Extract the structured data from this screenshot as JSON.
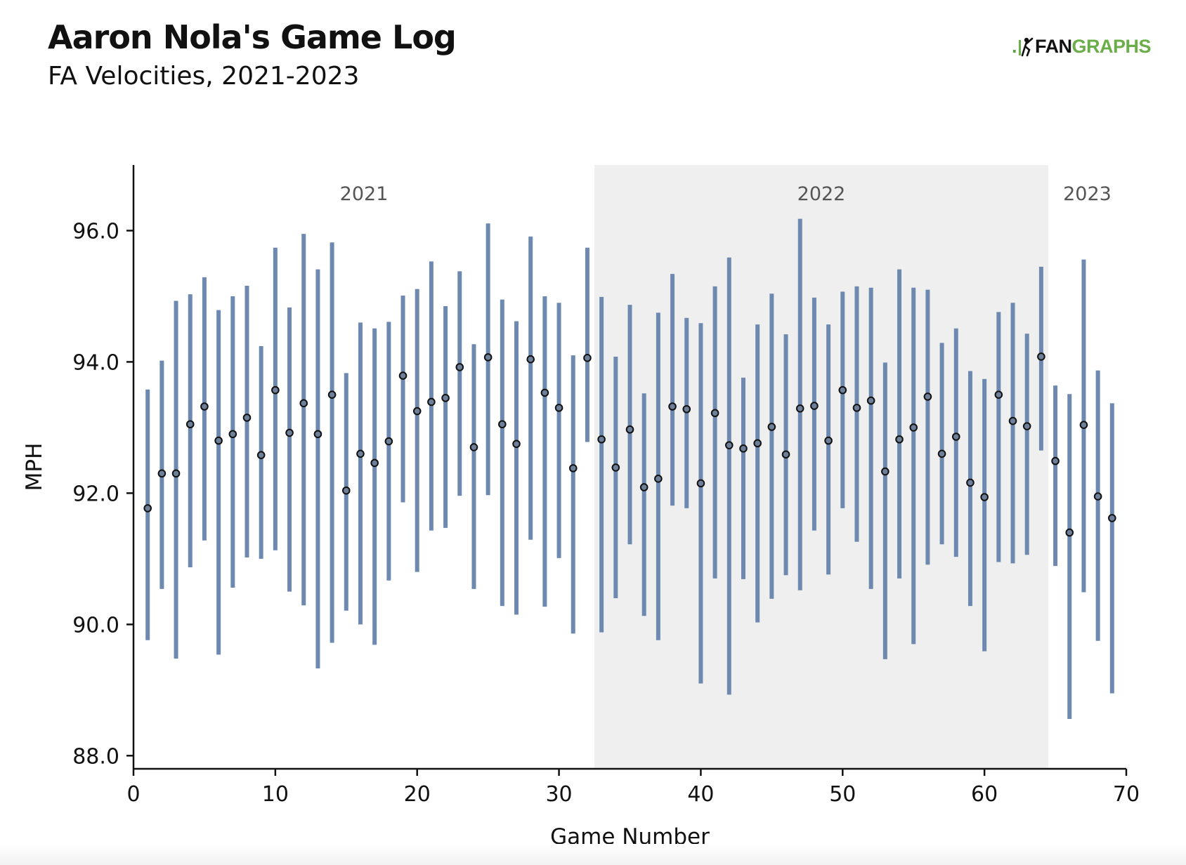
{
  "header": {
    "title": "Aaron Nola's Game Log",
    "subtitle": "FA Velocities, 2021-2023"
  },
  "logo": {
    "dot": ".",
    "part1": "FAN",
    "part2": "GRAPHS"
  },
  "colors": {
    "bar": "#6e89b0",
    "point_fill": "#6e7f99",
    "point_stroke": "#111111",
    "season_band": "#efefef",
    "season_label": "#555555"
  },
  "chart_data": {
    "type": "scatter",
    "title": "Aaron Nola's Game Log",
    "subtitle": "FA Velocities, 2021-2023",
    "xlabel": "Game Number",
    "ylabel": "MPH",
    "xlim": [
      0,
      70
    ],
    "ylim": [
      87.8,
      97.0
    ],
    "xticks": [
      0,
      10,
      20,
      30,
      40,
      50,
      60,
      70
    ],
    "yticks": [
      "88.0",
      "90.0",
      "92.0",
      "94.0",
      "96.0"
    ],
    "grid": false,
    "seasons": [
      {
        "label": "2021",
        "start": 0,
        "end": 32.5,
        "shaded": false
      },
      {
        "label": "2022",
        "start": 32.5,
        "end": 64.5,
        "shaded": true
      },
      {
        "label": "2023",
        "start": 64.5,
        "end": 70,
        "shaded": false
      }
    ],
    "series": [
      {
        "x": [
          1,
          2,
          3,
          4,
          5,
          6,
          7,
          8,
          9,
          10,
          11,
          12,
          13,
          14,
          15,
          16,
          17,
          18,
          19,
          20,
          21,
          22,
          23,
          24,
          25,
          26,
          27,
          28,
          29,
          30,
          31,
          32,
          33,
          34,
          35,
          36,
          37,
          38,
          39,
          40,
          41,
          42,
          43,
          44,
          45,
          46,
          47,
          48,
          49,
          50,
          51,
          52,
          53,
          54,
          55,
          56,
          57,
          58,
          59,
          60,
          61,
          62,
          63,
          64,
          65,
          66,
          67,
          68,
          69
        ],
        "mean": [
          91.77,
          92.3,
          92.3,
          93.05,
          93.32,
          92.8,
          92.9,
          93.15,
          92.58,
          93.57,
          92.92,
          93.37,
          92.9,
          93.5,
          92.04,
          92.6,
          92.46,
          92.79,
          93.79,
          93.25,
          93.39,
          93.45,
          93.92,
          92.7,
          94.07,
          93.05,
          92.75,
          94.04,
          93.53,
          93.3,
          92.38,
          94.06,
          92.82,
          92.39,
          92.97,
          92.09,
          92.22,
          93.32,
          93.28,
          92.15,
          93.22,
          92.73,
          92.68,
          92.76,
          93.01,
          92.59,
          93.29,
          93.33,
          92.8,
          93.57,
          93.3,
          93.41,
          92.33,
          92.82,
          93.0,
          93.47,
          92.6,
          92.86,
          92.16,
          91.94,
          93.5,
          93.1,
          93.02,
          94.08,
          92.49,
          91.4,
          93.04,
          91.95,
          91.62
        ],
        "high": [
          93.58,
          94.02,
          94.93,
          95.03,
          95.29,
          94.79,
          95.0,
          95.16,
          94.24,
          95.74,
          94.83,
          95.95,
          95.41,
          95.82,
          93.83,
          94.6,
          94.51,
          94.61,
          95.01,
          95.11,
          95.53,
          94.85,
          95.38,
          94.27,
          96.11,
          94.95,
          94.62,
          95.91,
          95.0,
          94.9,
          94.1,
          95.74,
          94.99,
          94.08,
          94.87,
          93.52,
          94.75,
          95.34,
          94.67,
          94.59,
          95.15,
          95.59,
          93.76,
          94.57,
          95.04,
          94.42,
          96.18,
          94.98,
          94.57,
          95.07,
          95.15,
          95.13,
          93.99,
          95.41,
          95.13,
          95.1,
          94.29,
          94.51,
          93.86,
          93.74,
          94.76,
          94.9,
          94.43,
          95.45,
          93.64,
          93.51,
          95.56,
          93.87,
          93.37
        ],
        "low": [
          89.76,
          90.54,
          89.48,
          90.87,
          91.28,
          89.54,
          90.56,
          91.02,
          91.0,
          91.13,
          90.5,
          90.29,
          89.33,
          89.72,
          90.21,
          90.0,
          89.69,
          90.67,
          91.86,
          90.8,
          91.43,
          91.47,
          91.96,
          90.54,
          91.97,
          90.28,
          90.15,
          91.29,
          90.27,
          91.01,
          89.86,
          92.78,
          89.88,
          90.4,
          91.22,
          90.13,
          89.76,
          91.81,
          91.77,
          89.1,
          90.7,
          88.93,
          90.69,
          90.03,
          90.39,
          90.75,
          90.52,
          91.43,
          90.76,
          91.77,
          91.26,
          90.54,
          89.47,
          90.7,
          89.7,
          90.91,
          91.22,
          91.03,
          90.28,
          89.59,
          90.95,
          90.93,
          91.06,
          92.65,
          90.89,
          88.56,
          90.49,
          89.75,
          88.95
        ]
      }
    ]
  }
}
